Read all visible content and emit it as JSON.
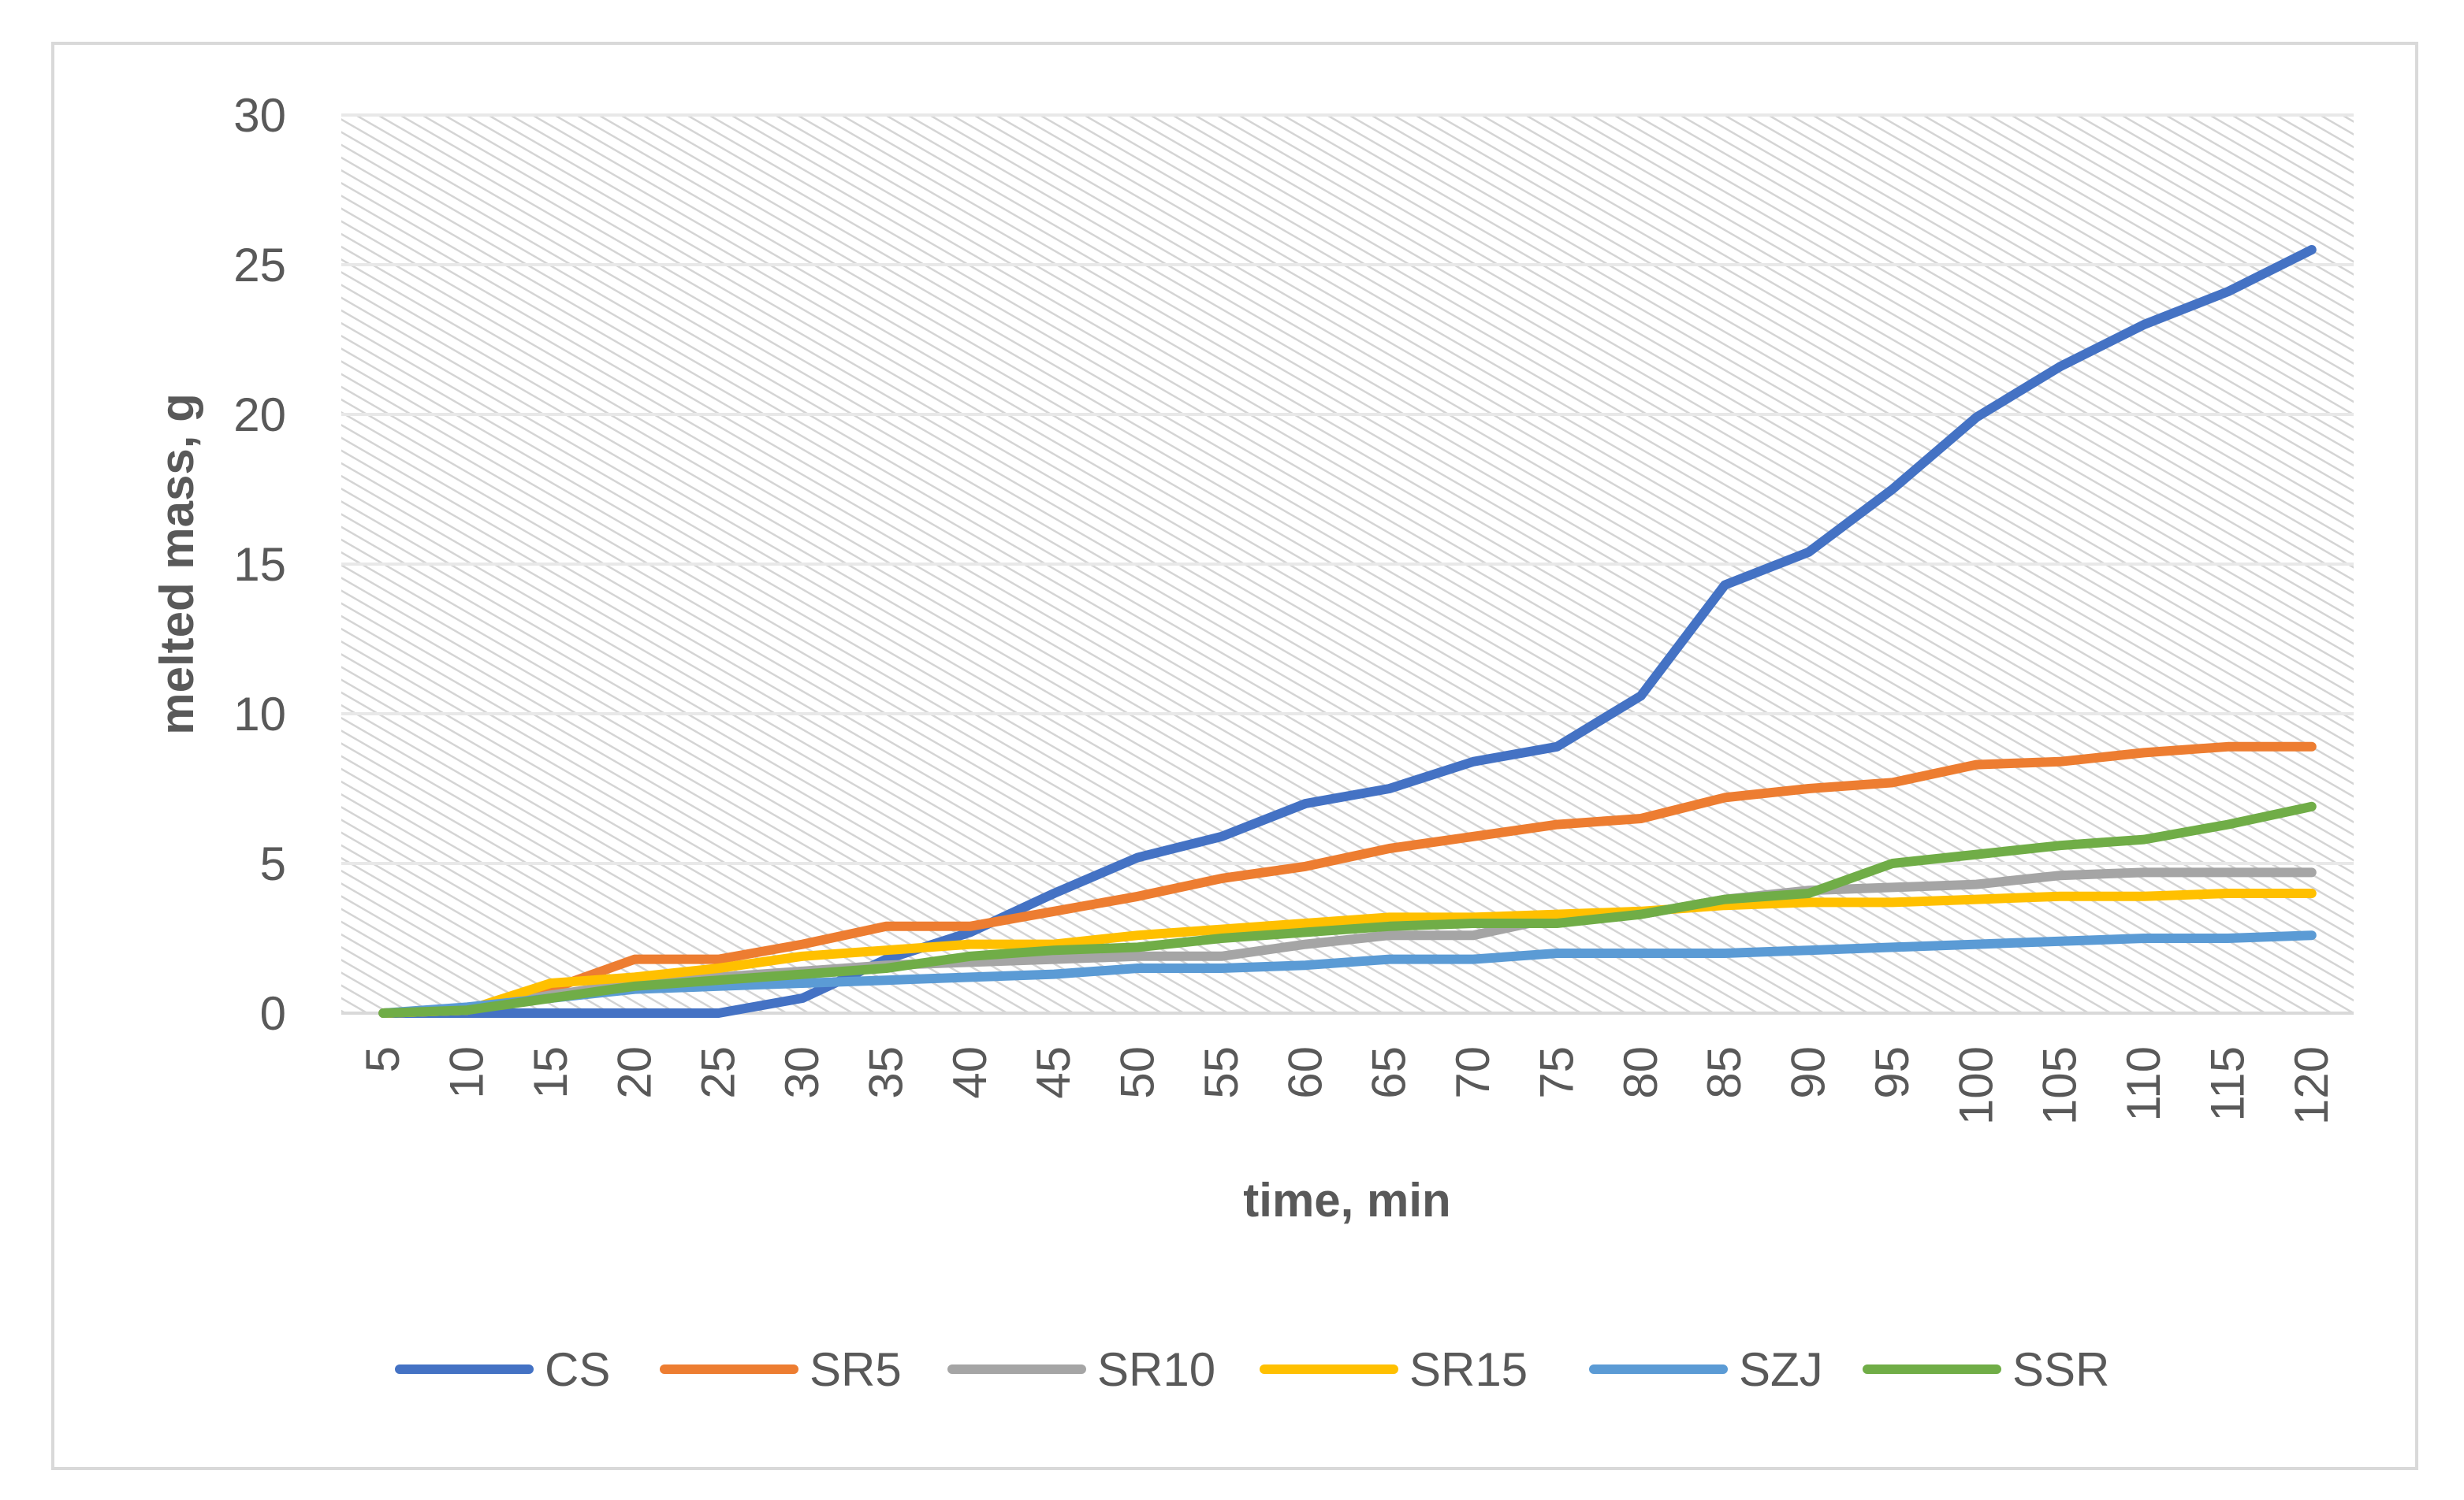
{
  "chart_data": {
    "type": "line",
    "title": "",
    "xlabel": "time, min",
    "ylabel": "melted mass, g",
    "categories": [
      5,
      10,
      15,
      20,
      25,
      30,
      35,
      40,
      45,
      50,
      55,
      60,
      65,
      70,
      75,
      80,
      85,
      90,
      95,
      100,
      105,
      110,
      115,
      120
    ],
    "ylim": [
      0,
      30
    ],
    "yticks": [
      0,
      5,
      10,
      15,
      20,
      25,
      30
    ],
    "grid": true,
    "legend_position": "bottom",
    "series": [
      {
        "name": "CS",
        "color": "#4472C4",
        "values": [
          0,
          0,
          0,
          0,
          0,
          0.5,
          1.8,
          2.7,
          4.0,
          5.2,
          5.9,
          7.0,
          7.5,
          8.4,
          8.9,
          10.6,
          14.3,
          15.4,
          17.5,
          19.9,
          21.6,
          23.0,
          24.1,
          25.5
        ]
      },
      {
        "name": "SR5",
        "color": "#ED7D31",
        "values": [
          0,
          0.1,
          0.8,
          1.8,
          1.8,
          2.3,
          2.9,
          2.9,
          3.4,
          3.9,
          4.5,
          4.9,
          5.5,
          5.9,
          6.3,
          6.5,
          7.2,
          7.5,
          7.7,
          8.3,
          8.4,
          8.7,
          8.9,
          8.9
        ]
      },
      {
        "name": "SR10",
        "color": "#A5A5A5",
        "values": [
          0,
          0.1,
          0.6,
          1.0,
          1.2,
          1.4,
          1.6,
          1.7,
          1.8,
          1.9,
          1.9,
          2.3,
          2.6,
          2.6,
          3.2,
          3.3,
          3.8,
          4.1,
          4.2,
          4.3,
          4.6,
          4.7,
          4.7,
          4.7
        ]
      },
      {
        "name": "SR15",
        "color": "#FFC000",
        "values": [
          0,
          0.1,
          1.0,
          1.2,
          1.5,
          1.9,
          2.1,
          2.3,
          2.3,
          2.6,
          2.8,
          3.0,
          3.2,
          3.2,
          3.3,
          3.4,
          3.6,
          3.7,
          3.7,
          3.8,
          3.9,
          3.9,
          4.0,
          4.0
        ]
      },
      {
        "name": "SZJ",
        "color": "#5B9BD5",
        "values": [
          0,
          0.2,
          0.5,
          0.8,
          0.9,
          1.0,
          1.1,
          1.2,
          1.3,
          1.5,
          1.5,
          1.6,
          1.8,
          1.8,
          2.0,
          2.0,
          2.0,
          2.1,
          2.2,
          2.3,
          2.4,
          2.5,
          2.5,
          2.6
        ]
      },
      {
        "name": "SSR",
        "color": "#70AD47",
        "values": [
          0,
          0.1,
          0.5,
          0.9,
          1.1,
          1.3,
          1.5,
          1.9,
          2.1,
          2.2,
          2.5,
          2.7,
          2.9,
          3.0,
          3.0,
          3.3,
          3.8,
          4.0,
          5.0,
          5.3,
          5.6,
          5.8,
          6.3,
          6.9
        ]
      }
    ]
  }
}
